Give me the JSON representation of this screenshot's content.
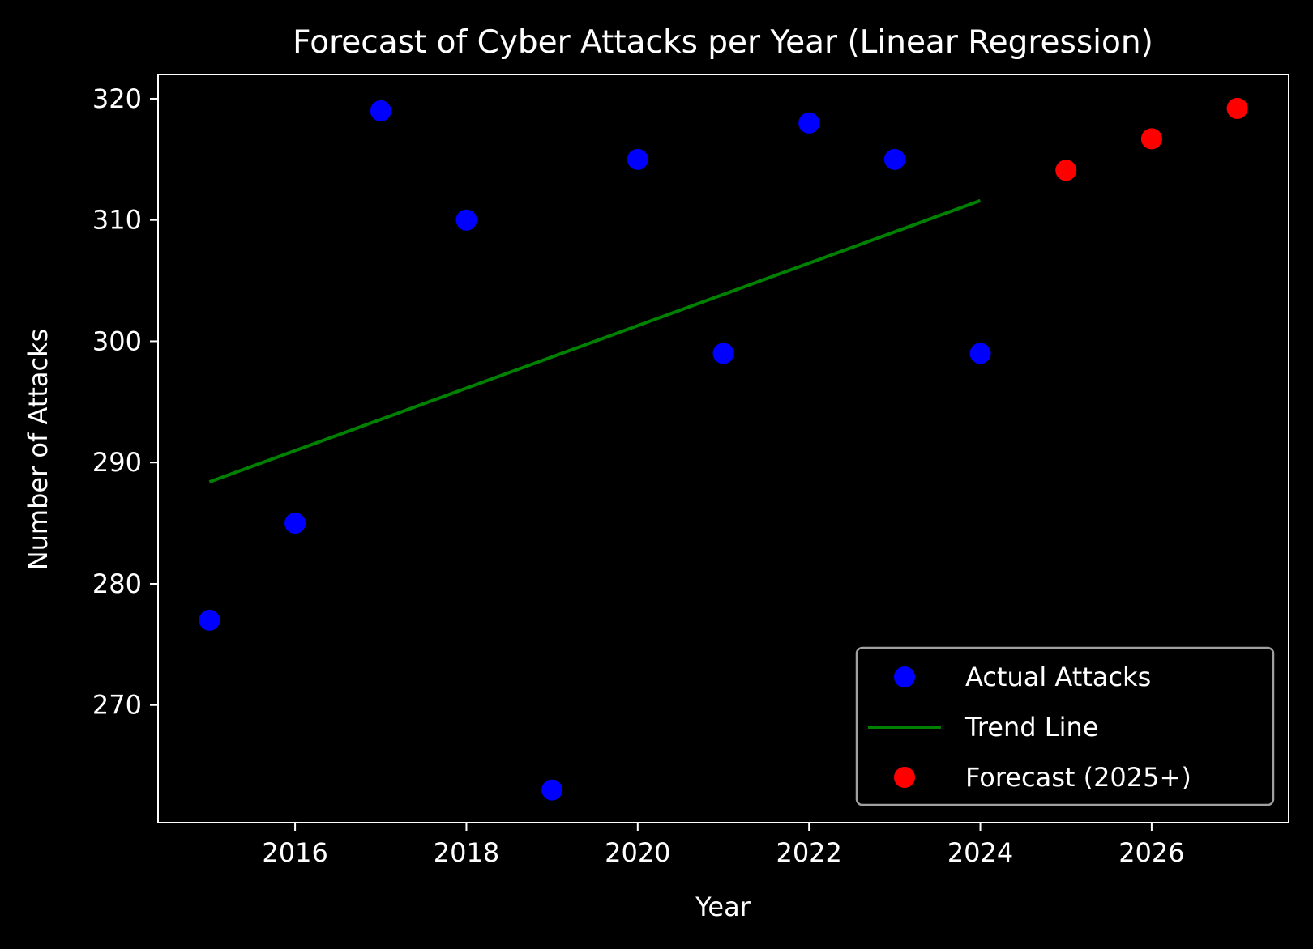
{
  "chart_data": {
    "type": "scatter",
    "title": "Forecast of Cyber Attacks per Year (Linear Regression)",
    "xlabel": "Year",
    "ylabel": "Number of Attacks",
    "xlim": [
      2014.4,
      2027.6
    ],
    "ylim": [
      260.3,
      322.0
    ],
    "xticks": [
      2016,
      2018,
      2020,
      2022,
      2024,
      2026
    ],
    "yticks": [
      270,
      280,
      290,
      300,
      310,
      320
    ],
    "grid": false,
    "legend_position": "lower right",
    "background": "#000000",
    "series": [
      {
        "name": "Actual Attacks",
        "kind": "scatter",
        "color": "#0000ff",
        "x": [
          2015,
          2016,
          2017,
          2018,
          2019,
          2020,
          2021,
          2022,
          2023,
          2024
        ],
        "y": [
          277,
          285,
          319,
          310,
          263,
          315,
          299,
          318,
          315,
          299
        ]
      },
      {
        "name": "Trend Line",
        "kind": "line",
        "color": "#008000",
        "x": [
          2015,
          2024
        ],
        "y": [
          288.4,
          311.6
        ]
      },
      {
        "name": "Forecast (2025+)",
        "kind": "scatter",
        "color": "#ff0000",
        "x": [
          2025,
          2026,
          2027
        ],
        "y": [
          314.1,
          316.7,
          319.2
        ]
      }
    ]
  }
}
